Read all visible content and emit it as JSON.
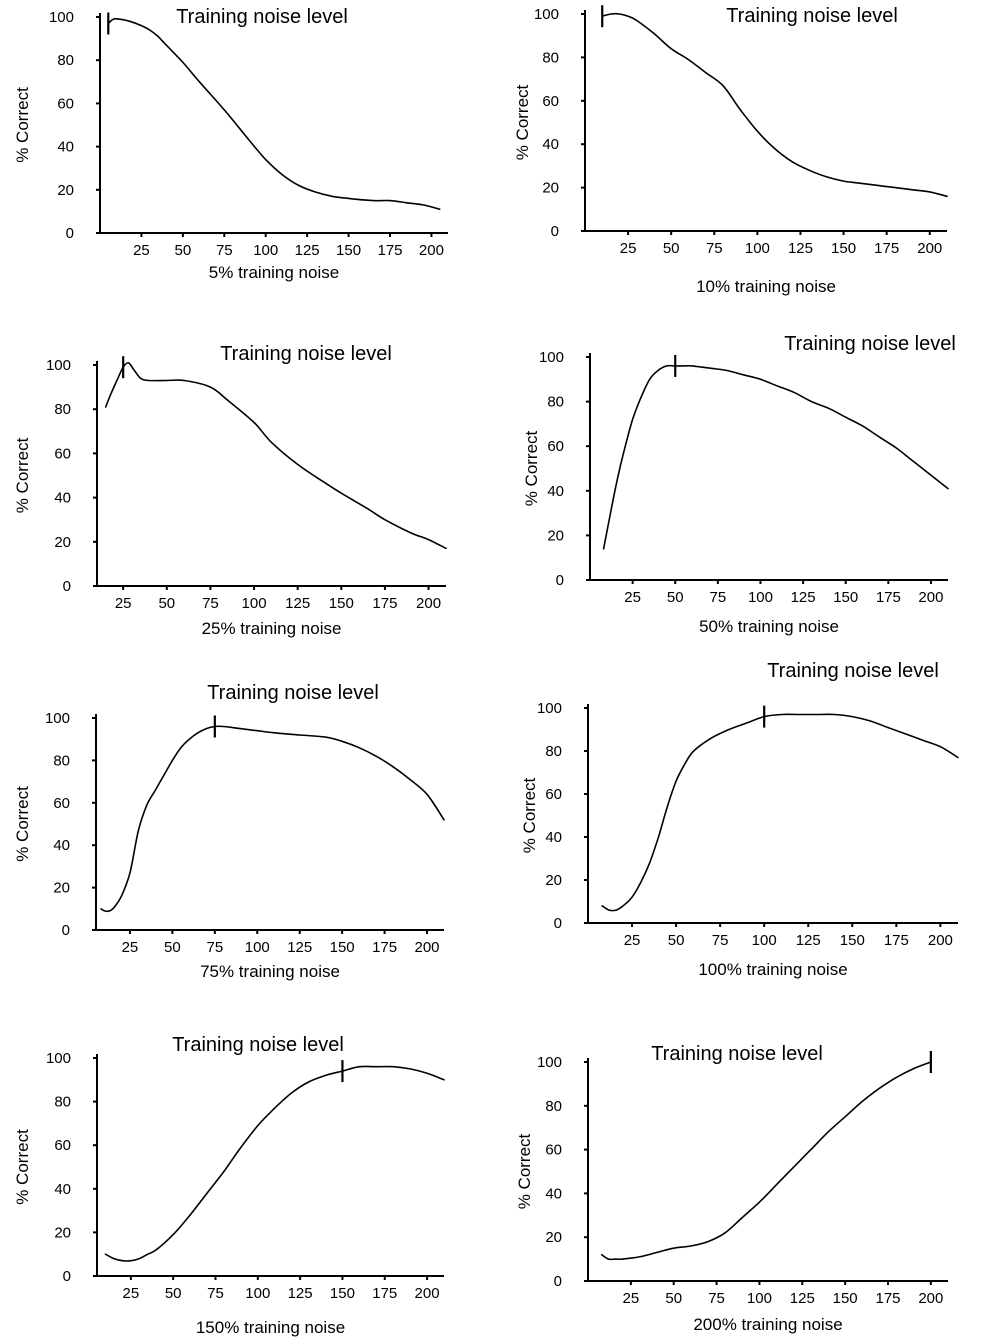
{
  "chart_data": [
    {
      "type": "line",
      "title": "Training noise level",
      "xlabel": "5% training noise",
      "ylabel": "% Correct",
      "x_ticks": [
        25,
        50,
        75,
        100,
        125,
        150,
        175,
        200
      ],
      "y_ticks": [
        0,
        20,
        40,
        60,
        80,
        100
      ],
      "xlim": [
        0,
        210
      ],
      "ylim": [
        0,
        100
      ],
      "marker_x": 5,
      "x": [
        5,
        8,
        12,
        18,
        25,
        30,
        35,
        40,
        50,
        60,
        75,
        90,
        100,
        110,
        120,
        130,
        140,
        150,
        165,
        175,
        185,
        195,
        205
      ],
      "y": [
        97,
        99,
        99,
        98,
        96,
        94,
        91,
        87,
        79,
        70,
        57,
        43,
        34,
        27,
        22,
        19,
        17,
        16,
        15,
        15,
        14,
        13,
        11
      ]
    },
    {
      "type": "line",
      "title": "Training noise level",
      "xlabel": "10% training noise",
      "ylabel": "% Correct",
      "x_ticks": [
        25,
        50,
        75,
        100,
        125,
        150,
        175,
        200
      ],
      "y_ticks": [
        0,
        20,
        40,
        60,
        80,
        100
      ],
      "xlim": [
        0,
        210
      ],
      "ylim": [
        0,
        100
      ],
      "marker_x": 10,
      "x": [
        10,
        15,
        20,
        25,
        30,
        40,
        50,
        60,
        70,
        80,
        90,
        100,
        110,
        120,
        130,
        140,
        150,
        160,
        170,
        180,
        190,
        200,
        210
      ],
      "y": [
        99,
        100,
        100,
        99,
        97,
        91,
        84,
        79,
        73,
        67,
        56,
        46,
        38,
        32,
        28,
        25,
        23,
        22,
        21,
        20,
        19,
        18,
        16
      ]
    },
    {
      "type": "line",
      "title": "Training noise level",
      "xlabel": "25% training noise",
      "ylabel": "% Correct",
      "x_ticks": [
        25,
        50,
        75,
        100,
        125,
        150,
        175,
        200
      ],
      "y_ticks": [
        0,
        20,
        40,
        60,
        80,
        100
      ],
      "xlim": [
        10,
        210
      ],
      "ylim": [
        0,
        100
      ],
      "marker_x": 25,
      "x": [
        15,
        18,
        22,
        25,
        28,
        31,
        35,
        40,
        50,
        60,
        75,
        85,
        100,
        110,
        125,
        140,
        150,
        165,
        175,
        190,
        200,
        210
      ],
      "y": [
        81,
        87,
        94,
        99,
        101,
        98,
        94,
        93,
        93,
        93,
        90,
        84,
        74,
        65,
        55,
        47,
        42,
        35,
        30,
        24,
        21,
        17
      ]
    },
    {
      "type": "line",
      "title": "Training noise level",
      "xlabel": "50% training noise",
      "ylabel": "% Correct",
      "x_ticks": [
        25,
        50,
        75,
        100,
        125,
        150,
        175,
        200
      ],
      "y_ticks": [
        0,
        20,
        40,
        60,
        80,
        100
      ],
      "xlim": [
        0,
        210
      ],
      "ylim": [
        0,
        100
      ],
      "marker_x": 50,
      "x": [
        8,
        12,
        16,
        20,
        25,
        30,
        35,
        40,
        45,
        50,
        55,
        60,
        70,
        80,
        90,
        100,
        110,
        120,
        130,
        140,
        150,
        160,
        170,
        180,
        190,
        200,
        210
      ],
      "y": [
        14,
        30,
        45,
        58,
        72,
        82,
        90,
        94,
        96,
        96,
        96,
        96,
        95,
        94,
        92,
        90,
        87,
        84,
        80,
        77,
        73,
        69,
        64,
        59,
        53,
        47,
        41
      ]
    },
    {
      "type": "line",
      "title": "Training noise level",
      "xlabel": "75% training noise",
      "ylabel": "% Correct",
      "x_ticks": [
        25,
        50,
        75,
        100,
        125,
        150,
        175,
        200
      ],
      "y_ticks": [
        0,
        20,
        40,
        60,
        80,
        100
      ],
      "xlim": [
        5,
        210
      ],
      "ylim": [
        0,
        100
      ],
      "marker_x": 75,
      "x": [
        8,
        10,
        13,
        16,
        20,
        25,
        30,
        35,
        40,
        45,
        50,
        55,
        60,
        65,
        70,
        75,
        80,
        90,
        100,
        110,
        125,
        140,
        150,
        160,
        170,
        180,
        190,
        200,
        210
      ],
      "y": [
        10,
        9,
        9,
        11,
        16,
        27,
        47,
        59,
        66,
        73,
        80,
        86,
        90,
        93,
        95,
        96,
        96,
        95,
        94,
        93,
        92,
        91,
        89,
        86,
        82,
        77,
        71,
        64,
        52
      ]
    },
    {
      "type": "line",
      "title": "Training noise level",
      "xlabel": "100% training noise",
      "ylabel": "% Correct",
      "x_ticks": [
        25,
        50,
        75,
        100,
        125,
        150,
        175,
        200
      ],
      "y_ticks": [
        0,
        20,
        40,
        60,
        80,
        100
      ],
      "xlim": [
        0,
        210
      ],
      "ylim": [
        0,
        100
      ],
      "marker_x": 100,
      "x": [
        8,
        12,
        16,
        20,
        25,
        30,
        35,
        40,
        45,
        50,
        55,
        60,
        70,
        80,
        90,
        100,
        110,
        120,
        130,
        140,
        150,
        160,
        170,
        180,
        190,
        200,
        210
      ],
      "y": [
        8,
        6,
        6,
        8,
        12,
        19,
        28,
        40,
        54,
        66,
        74,
        80,
        86,
        90,
        93,
        96,
        97,
        97,
        97,
        97,
        96,
        94,
        91,
        88,
        85,
        82,
        77
      ]
    },
    {
      "type": "line",
      "title": "Training noise level",
      "xlabel": "150% training noise",
      "ylabel": "% Correct",
      "x_ticks": [
        25,
        50,
        75,
        100,
        125,
        150,
        175,
        200
      ],
      "y_ticks": [
        0,
        20,
        40,
        60,
        80,
        100
      ],
      "xlim": [
        5,
        210
      ],
      "ylim": [
        0,
        100
      ],
      "marker_x": 150,
      "x": [
        10,
        15,
        20,
        25,
        30,
        35,
        40,
        50,
        60,
        70,
        80,
        90,
        100,
        110,
        120,
        130,
        140,
        150,
        160,
        170,
        180,
        190,
        200,
        210
      ],
      "y": [
        10,
        8,
        7,
        7,
        8,
        10,
        12,
        19,
        28,
        38,
        48,
        59,
        69,
        77,
        84,
        89,
        92,
        94,
        96,
        96,
        96,
        95,
        93,
        90
      ]
    },
    {
      "type": "line",
      "title": "Training noise level",
      "xlabel": "200% training noise",
      "ylabel": "% Correct",
      "x_ticks": [
        25,
        50,
        75,
        100,
        125,
        150,
        175,
        200
      ],
      "y_ticks": [
        0,
        20,
        40,
        60,
        80,
        100
      ],
      "xlim": [
        0,
        210
      ],
      "ylim": [
        0,
        100
      ],
      "marker_x": 200,
      "x": [
        8,
        12,
        16,
        20,
        30,
        40,
        50,
        60,
        70,
        80,
        90,
        100,
        110,
        120,
        130,
        140,
        150,
        160,
        170,
        180,
        190,
        200
      ],
      "y": [
        12,
        10,
        10,
        10,
        11,
        13,
        15,
        16,
        18,
        22,
        29,
        36,
        44,
        52,
        60,
        68,
        75,
        82,
        88,
        93,
        97,
        100
      ]
    }
  ]
}
